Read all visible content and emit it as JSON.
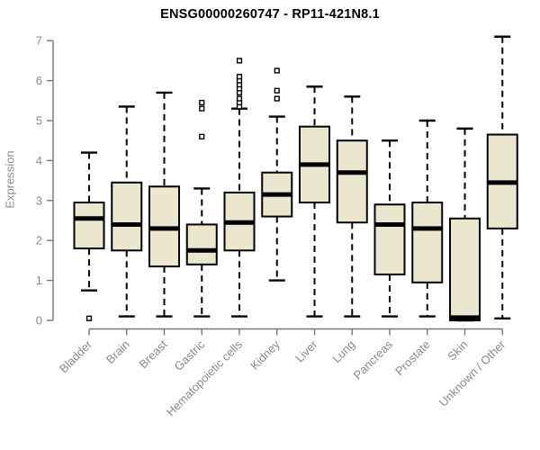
{
  "chart_data": {
    "type": "boxplot",
    "title": "ENSG00000260747 - RP11-421N8.1",
    "ylabel": "Expression",
    "xlabel": "",
    "ylim": [
      0,
      7
    ],
    "yticks": [
      0,
      1,
      2,
      3,
      4,
      5,
      6,
      7
    ],
    "grid": false,
    "legend": "none",
    "colors": {
      "box_fill": "#EBE7CF",
      "box_stroke": "#000000",
      "median": "#000000",
      "whisker": "#000000",
      "axis_line": "#777777",
      "axis_text": "#8a8a8a",
      "title_text": "#000000"
    },
    "categories": [
      "Bladder",
      "Brain",
      "Breast",
      "Gastric",
      "Hematopoietic cells",
      "Kidney",
      "Liver",
      "Lung",
      "Pancreas",
      "Prostate",
      "Skin",
      "Unknown / Other"
    ],
    "series": [
      {
        "category": "Bladder",
        "whisker_low": 0.75,
        "q1": 1.8,
        "median": 2.55,
        "q3": 2.95,
        "whisker_high": 4.2,
        "outliers": [
          0.05
        ]
      },
      {
        "category": "Brain",
        "whisker_low": 0.1,
        "q1": 1.75,
        "median": 2.4,
        "q3": 3.45,
        "whisker_high": 5.35,
        "outliers": []
      },
      {
        "category": "Breast",
        "whisker_low": 0.1,
        "q1": 1.35,
        "median": 2.3,
        "q3": 3.35,
        "whisker_high": 5.7,
        "outliers": []
      },
      {
        "category": "Gastric",
        "whisker_low": 0.1,
        "q1": 1.4,
        "median": 1.75,
        "q3": 2.4,
        "whisker_high": 3.3,
        "outliers": [
          4.6,
          5.3,
          5.45
        ]
      },
      {
        "category": "Hematopoietic cells",
        "whisker_low": 0.1,
        "q1": 1.75,
        "median": 2.45,
        "q3": 3.2,
        "whisker_high": 5.3,
        "outliers": [
          5.35,
          5.45,
          5.55,
          5.7,
          5.8,
          5.9,
          6.0,
          6.1,
          6.5
        ]
      },
      {
        "category": "Kidney",
        "whisker_low": 1.0,
        "q1": 2.6,
        "median": 3.15,
        "q3": 3.7,
        "whisker_high": 5.1,
        "outliers": [
          5.55,
          5.75,
          6.25
        ]
      },
      {
        "category": "Liver",
        "whisker_low": 0.1,
        "q1": 2.95,
        "median": 3.9,
        "q3": 4.85,
        "whisker_high": 5.85,
        "outliers": []
      },
      {
        "category": "Lung",
        "whisker_low": 0.1,
        "q1": 2.45,
        "median": 3.7,
        "q3": 4.5,
        "whisker_high": 5.6,
        "outliers": []
      },
      {
        "category": "Pancreas",
        "whisker_low": 0.1,
        "q1": 1.15,
        "median": 2.4,
        "q3": 2.9,
        "whisker_high": 4.5,
        "outliers": []
      },
      {
        "category": "Prostate",
        "whisker_low": 0.1,
        "q1": 0.95,
        "median": 2.3,
        "q3": 2.95,
        "whisker_high": 5.0,
        "outliers": []
      },
      {
        "category": "Skin",
        "whisker_low": 0.0,
        "q1": 0.0,
        "median": 0.07,
        "q3": 2.55,
        "whisker_high": 4.8,
        "outliers": []
      },
      {
        "category": "Unknown / Other",
        "whisker_low": 0.05,
        "q1": 2.3,
        "median": 3.45,
        "q3": 4.65,
        "whisker_high": 7.1,
        "outliers": []
      }
    ]
  }
}
